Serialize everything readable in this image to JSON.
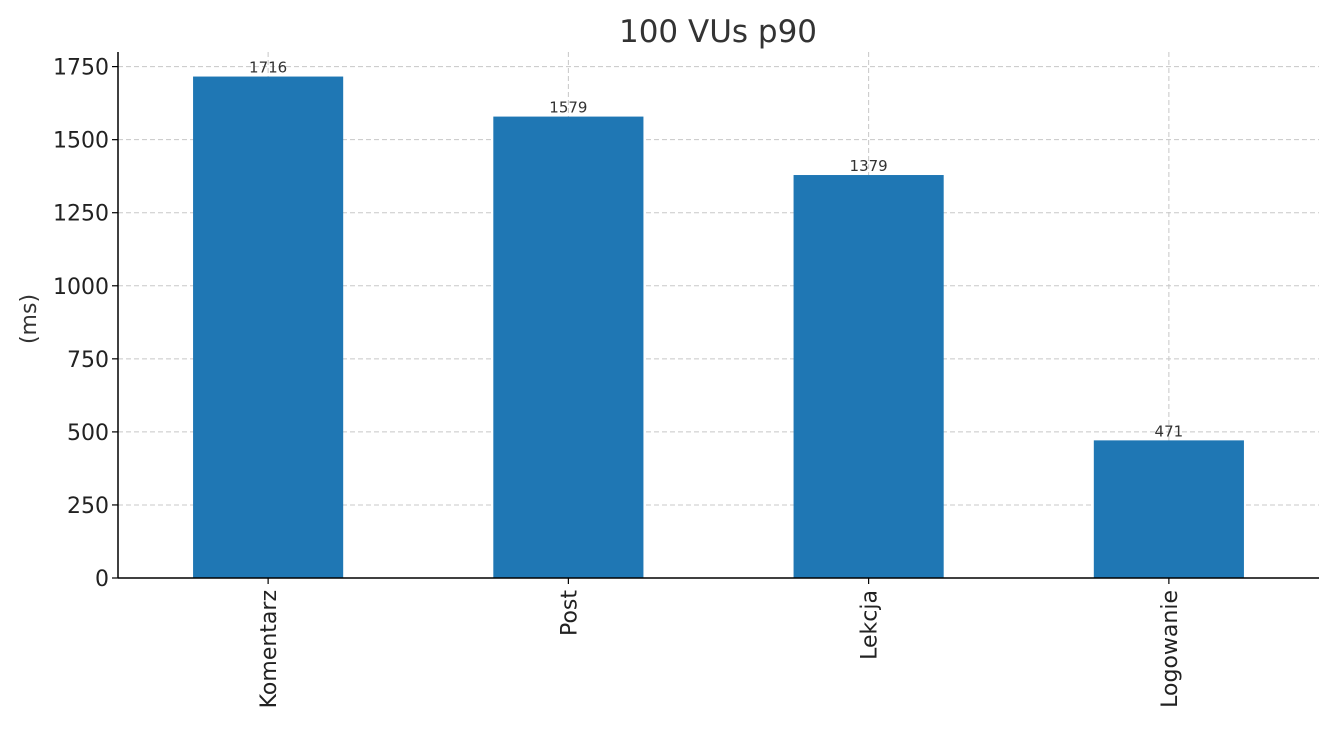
{
  "chart_data": {
    "type": "bar",
    "title": "100 VUs p90",
    "xlabel": "",
    "ylabel": "(ms)",
    "categories": [
      "Komentarz",
      "Post",
      "Lekcja",
      "Logowanie"
    ],
    "values": [
      1716,
      1579,
      1379,
      471
    ],
    "data_labels": [
      "1716",
      "1579",
      "1379",
      "471"
    ],
    "ylim": [
      0,
      1800
    ],
    "yticks": [
      0,
      250,
      500,
      750,
      1000,
      1250,
      1500,
      1750
    ],
    "ytick_labels": [
      "0",
      "250",
      "500",
      "750",
      "1000",
      "1250",
      "1500",
      "1750"
    ],
    "grid": true,
    "bar_color": "#1f77b4"
  }
}
